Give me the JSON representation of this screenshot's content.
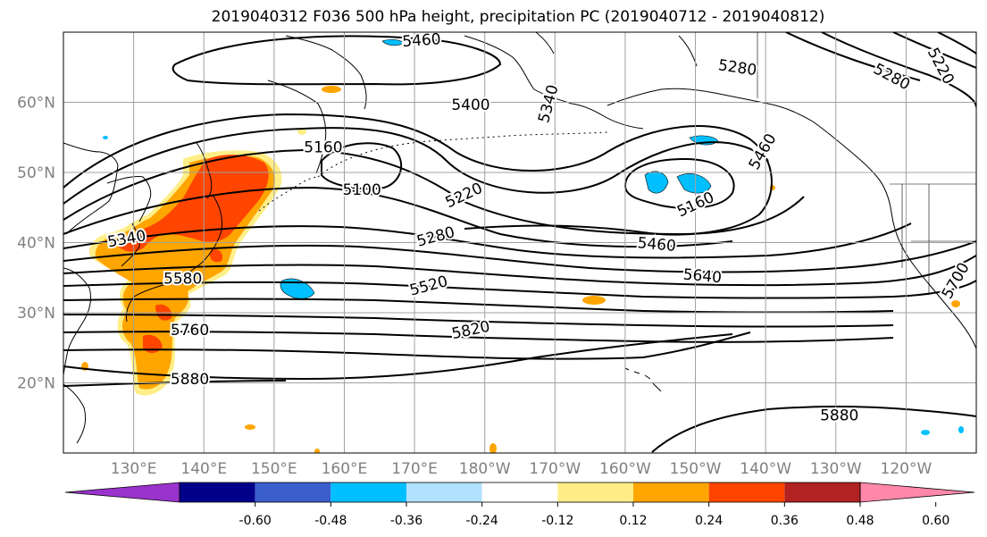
{
  "title": "2019040312 F036 500 hPa height, precipitation PC (2019040712 - 2019040812)",
  "map": {
    "projection": "equirectangular",
    "lon_range": [
      120,
      250
    ],
    "lat_range": [
      10,
      70
    ],
    "lat_ticks": [
      {
        "value": 60,
        "label": "60°N"
      },
      {
        "value": 50,
        "label": "50°N"
      },
      {
        "value": 40,
        "label": "40°N"
      },
      {
        "value": 30,
        "label": "30°N"
      },
      {
        "value": 20,
        "label": "20°N"
      }
    ],
    "lon_ticks": [
      {
        "value": 130,
        "label": "130°E"
      },
      {
        "value": 140,
        "label": "140°E"
      },
      {
        "value": 150,
        "label": "150°E"
      },
      {
        "value": 160,
        "label": "160°E"
      },
      {
        "value": 170,
        "label": "170°E"
      },
      {
        "value": 180,
        "label": "180°W"
      },
      {
        "value": 190,
        "label": "170°W"
      },
      {
        "value": 200,
        "label": "160°W"
      },
      {
        "value": 210,
        "label": "150°W"
      },
      {
        "value": 220,
        "label": "140°W"
      },
      {
        "value": 230,
        "label": "130°W"
      },
      {
        "value": 240,
        "label": "120°W"
      }
    ],
    "contour_labels": [
      {
        "text": "5460",
        "lon": 171,
        "lat": 68.9,
        "rot": -4
      },
      {
        "text": "5400",
        "lon": 178,
        "lat": 59.7,
        "rot": 0
      },
      {
        "text": "5340",
        "lon": 189,
        "lat": 59.8,
        "rot": -75
      },
      {
        "text": "5280",
        "lon": 216,
        "lat": 65.0,
        "rot": 8
      },
      {
        "text": "5280",
        "lon": 238,
        "lat": 63.7,
        "rot": 28
      },
      {
        "text": "5220",
        "lon": 245,
        "lat": 65.2,
        "rot": 62
      },
      {
        "text": "5160",
        "lon": 157,
        "lat": 53.6,
        "rot": 0
      },
      {
        "text": "5100",
        "lon": 162.5,
        "lat": 47.6,
        "rot": 0
      },
      {
        "text": "5220",
        "lon": 177,
        "lat": 46.8,
        "rot": -25
      },
      {
        "text": "5160",
        "lon": 210,
        "lat": 45.5,
        "rot": -25
      },
      {
        "text": "5460",
        "lon": 219.5,
        "lat": 53.0,
        "rot": -60
      },
      {
        "text": "5340",
        "lon": 129,
        "lat": 40.6,
        "rot": -10
      },
      {
        "text": "5280",
        "lon": 173,
        "lat": 40.9,
        "rot": -15
      },
      {
        "text": "5460",
        "lon": 204.5,
        "lat": 39.8,
        "rot": 5
      },
      {
        "text": "5580",
        "lon": 137,
        "lat": 34.9,
        "rot": 0
      },
      {
        "text": "5520",
        "lon": 172,
        "lat": 33.9,
        "rot": -15
      },
      {
        "text": "5640",
        "lon": 211,
        "lat": 35.3,
        "rot": 5
      },
      {
        "text": "5700",
        "lon": 247,
        "lat": 34.6,
        "rot": -60
      },
      {
        "text": "5760",
        "lon": 138,
        "lat": 27.6,
        "rot": 0
      },
      {
        "text": "5820",
        "lon": 178,
        "lat": 27.6,
        "rot": -12
      },
      {
        "text": "5880",
        "lon": 138,
        "lat": 20.6,
        "rot": 0
      },
      {
        "text": "5880",
        "lon": 230.5,
        "lat": 15.4,
        "rot": 0
      }
    ]
  },
  "colorbar": {
    "colors": [
      "#9933cc",
      "#00008b",
      "#3a5fcd",
      "#00bfff",
      "#b2e0ff",
      "#ffffff",
      "#ffee88",
      "#ffa500",
      "#ff4500",
      "#b22222",
      "#ff88aa"
    ],
    "ticks": [
      "-0.60",
      "-0.48",
      "-0.36",
      "-0.24",
      "-0.12",
      "0.12",
      "0.24",
      "0.36",
      "0.48",
      "0.60"
    ]
  },
  "colors": {
    "grid": "#a0a0a0",
    "tick_label": "#808080",
    "contour": "#000000",
    "coast": "#000000",
    "frame": "#000000"
  }
}
